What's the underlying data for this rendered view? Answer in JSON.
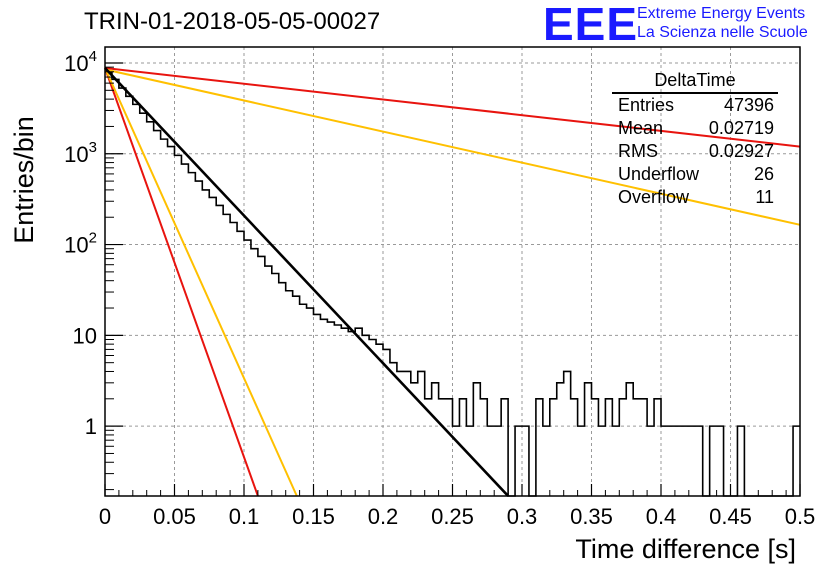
{
  "title": "TRIN-01-2018-05-05-00027",
  "logo": {
    "mark": "EEE",
    "line1": "Extreme Energy Events",
    "line2": "La Scienza nelle Scuole"
  },
  "stats_box": {
    "name": "DeltaTime",
    "rows": [
      {
        "label": "Entries",
        "value": "47396"
      },
      {
        "label": "Mean",
        "value": "0.02719"
      },
      {
        "label": "RMS",
        "value": "0.02927"
      },
      {
        "label": "Underflow",
        "value": "26"
      },
      {
        "label": "Overflow",
        "value": "11"
      }
    ]
  },
  "colors": {
    "histogram": "#000000",
    "fit": "#000000",
    "red_curves": "#e8140f",
    "orange_curves": "#ffc000",
    "grid": "#9a9a9a"
  },
  "chart_data": {
    "type": "line",
    "title": "TRIN-01-2018-05-05-00027",
    "xlabel": "Time difference [s]",
    "ylabel": "Entries/bin",
    "xlim": [
      0,
      0.5
    ],
    "ylim": [
      0.17,
      15000
    ],
    "yscale": "log",
    "grid": true,
    "x_ticks": [
      "0",
      "0.05",
      "0.1",
      "0.15",
      "0.2",
      "0.25",
      "0.3",
      "0.35",
      "0.4",
      "0.45",
      "0.5"
    ],
    "y_ticks": [
      "1",
      "10",
      "10^2",
      "10^3",
      "10^4"
    ],
    "histogram": {
      "bin_width": 0.005,
      "counts": [
        8000,
        6600,
        5300,
        4300,
        3500,
        2800,
        2250,
        1800,
        1450,
        1200,
        960,
        770,
        620,
        500,
        400,
        330,
        270,
        215,
        175,
        140,
        112,
        90,
        74,
        58,
        48,
        38,
        31,
        27,
        22,
        20,
        17,
        15,
        14,
        13,
        12,
        11,
        12,
        10,
        9,
        8,
        7,
        5,
        4,
        4,
        3,
        4,
        2,
        3,
        2,
        2,
        1,
        2,
        1,
        3,
        2,
        1,
        1,
        2,
        0,
        1,
        1,
        0,
        2,
        1,
        2,
        3,
        4,
        2,
        1,
        3,
        2,
        1,
        2,
        1,
        2,
        3,
        2,
        2,
        1,
        2,
        1,
        1,
        1,
        1,
        1,
        1,
        0,
        1,
        1,
        0,
        0,
        1,
        0,
        0,
        0,
        0,
        0,
        0,
        0,
        1
      ]
    },
    "series": [
      {
        "color": "black",
        "x": [
          0,
          0.29
        ],
        "y": [
          8800,
          0.17
        ]
      },
      {
        "color": "red",
        "x": [
          0,
          0.11
        ],
        "y": [
          8800,
          0.17
        ]
      },
      {
        "color": "orange",
        "x": [
          0,
          0.138
        ],
        "y": [
          8800,
          0.17
        ]
      },
      {
        "color": "red",
        "x": [
          0,
          0.5
        ],
        "y": [
          8800,
          1200
        ]
      },
      {
        "color": "orange",
        "x": [
          0,
          0.5
        ],
        "y": [
          8500,
          165
        ]
      }
    ]
  }
}
